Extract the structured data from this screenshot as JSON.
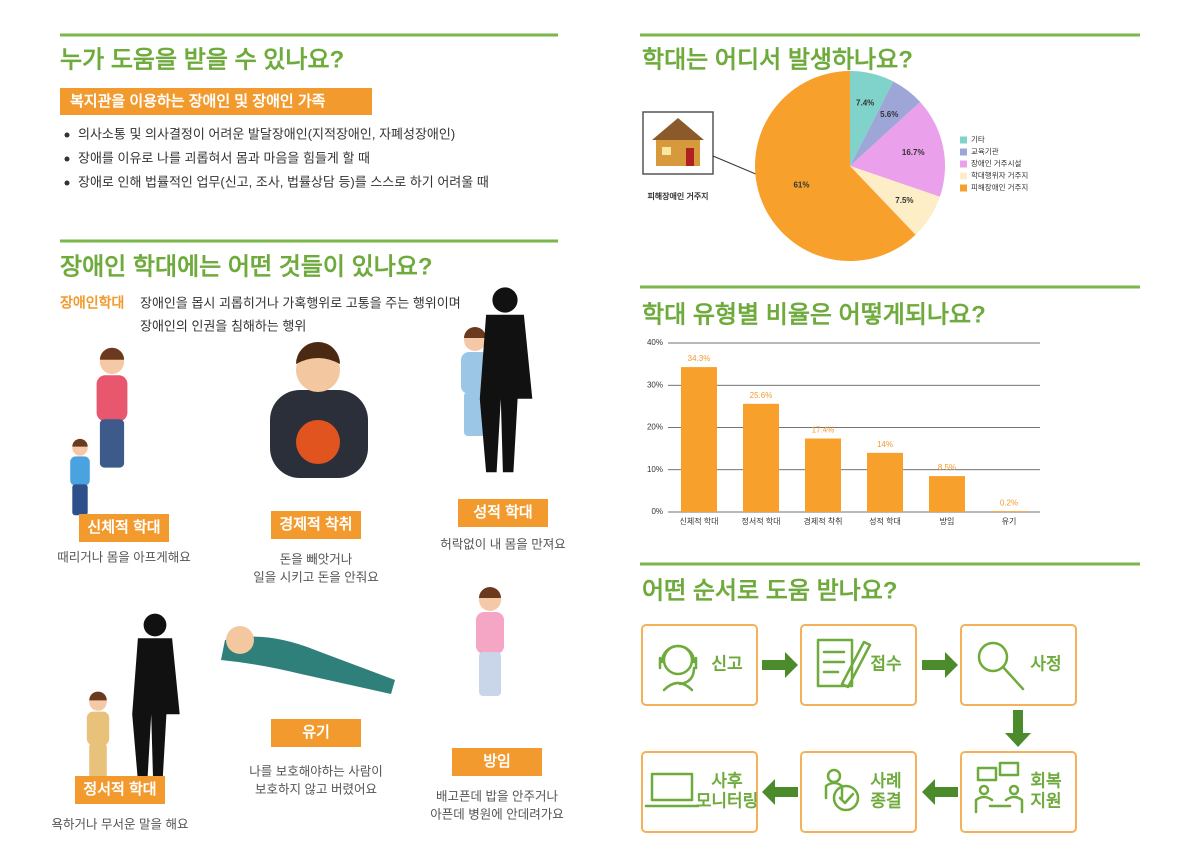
{
  "who": {
    "title": "누가 도움을 받을 수 있나요?",
    "badge": "복지관을 이용하는 장애인 및 장애인 가족",
    "bullets": [
      "의사소통 및 의사결정이 어려운 발달장애인(지적장애인, 자폐성장애인)",
      "장애를 이유로 나를 괴롭혀서 몸과 마음을 힘들게 할 때",
      "장애로 인해 법률적인 업무(신고, 조사, 법률상담 등)를 스스로 하기 어려울 때"
    ]
  },
  "types": {
    "title": "장애인 학대에는 어떤 것들이 있나요?",
    "term": "장애인학대",
    "definition": [
      "장애인을 몹시 괴롭히거나 가혹행위로 고통을 주는 행위이며",
      "장애인의 인권을 침해하는 행위"
    ],
    "items": [
      {
        "label": "신체적 학대",
        "description": [
          "때리거나 몸을 아프게해요"
        ]
      },
      {
        "label": "경제적 착취",
        "description": [
          "돈을 빼앗거나",
          "일을 시키고 돈을 안줘요"
        ]
      },
      {
        "label": "성적 학대",
        "description": [
          "허락없이 내 몸을 만져요"
        ]
      },
      {
        "label": "정서적 학대",
        "description": [
          "욕하거나 무서운 말을 해요"
        ]
      },
      {
        "label": "유기",
        "description": [
          "나를 보호해야하는 사람이",
          "보호하지 않고 버렸어요"
        ]
      },
      {
        "label": "방임",
        "description": [
          "배고픈데 밥을 안주거나",
          "아픈데 병원에 안데려가요"
        ]
      }
    ]
  },
  "chart_data": [
    {
      "type": "pie",
      "title": "학대는 어디서 발생하나요?",
      "annotation": "피해장애인 거주지",
      "categories": [
        "기타",
        "교육기관",
        "장애인 거주시설",
        "학대행위자 거주지",
        "피해장애인 거주지"
      ],
      "values": [
        7.4,
        5.6,
        16.7,
        7.5,
        61
      ],
      "value_labels": [
        "7.4%",
        "5.6%",
        "16.7%",
        "7.5%",
        "61%"
      ],
      "colors": [
        "#7fd3cb",
        "#9ea6d8",
        "#eaa0ea",
        "#fdeec8",
        "#f7a02b"
      ],
      "legend": "right"
    },
    {
      "type": "bar",
      "title": "학대 유형별 비율은 어떻게되나요?",
      "categories": [
        "신체적 학대",
        "정서적 학대",
        "경제적 착취",
        "성적 학대",
        "방임",
        "유기"
      ],
      "values": [
        34.3,
        25.6,
        17.4,
        14,
        8.5,
        0.2
      ],
      "value_labels": [
        "34.3%",
        "25.6%",
        "17.4%",
        "14%",
        "8.5%",
        "0.2%"
      ],
      "color": "#f7a02b",
      "ylim": [
        0,
        40
      ],
      "yticks": [
        {
          "value": 0,
          "label": "0%"
        },
        {
          "value": 10,
          "label": "10%"
        },
        {
          "value": 20,
          "label": "20%"
        },
        {
          "value": 30,
          "label": "30%"
        },
        {
          "value": 40,
          "label": "40%"
        }
      ],
      "grid": true
    }
  ],
  "process": {
    "title": "어떤 순서로 도움 받나요?",
    "steps": [
      {
        "lines": [
          "신고"
        ]
      },
      {
        "lines": [
          "접수"
        ]
      },
      {
        "lines": [
          "사정"
        ]
      },
      {
        "lines": [
          "회복",
          "지원"
        ]
      },
      {
        "lines": [
          "사례",
          "종결"
        ]
      },
      {
        "lines": [
          "사후",
          "모니터링"
        ]
      }
    ]
  }
}
